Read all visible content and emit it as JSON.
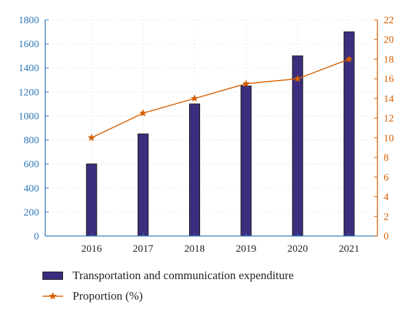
{
  "chart_data": {
    "type": "bar",
    "categories": [
      "2016",
      "2017",
      "2018",
      "2019",
      "2020",
      "2021"
    ],
    "series": [
      {
        "name": "Transportation and communication expenditure",
        "type": "bar",
        "axis": "left",
        "color": "#3B2E7E",
        "values": [
          600,
          850,
          1100,
          1250,
          1500,
          1700
        ]
      },
      {
        "name": "Proportion (%)",
        "type": "line",
        "axis": "right",
        "color": "#D55E00",
        "marker": "star",
        "values": [
          10,
          12.5,
          14,
          15.5,
          16,
          18
        ]
      }
    ],
    "y_left": {
      "min": 0,
      "max": 1800,
      "ticks": [
        0,
        200,
        400,
        600,
        800,
        1000,
        1200,
        1400,
        1600,
        1800
      ],
      "color": "#2E75B6"
    },
    "y_right": {
      "min": 0,
      "max": 22,
      "ticks": [
        0,
        2,
        4,
        6,
        8,
        10,
        12,
        14,
        16,
        18,
        20,
        22
      ],
      "color": "#D55E00"
    },
    "grid": true,
    "legend": "bottom-left"
  },
  "legend": {
    "items": [
      {
        "label": "Transportation and communication expenditure",
        "color": "#3B2E7E",
        "kind": "bar"
      },
      {
        "label": "Proportion (%)",
        "color": "#D55E00",
        "kind": "line"
      }
    ]
  }
}
